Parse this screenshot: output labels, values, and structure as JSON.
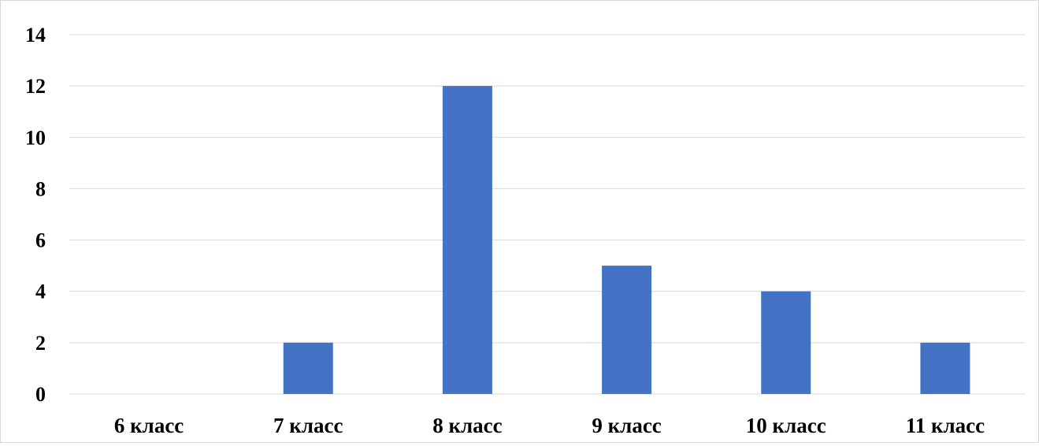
{
  "chart_data": {
    "type": "bar",
    "title": "",
    "xlabel": "",
    "ylabel": "",
    "categories": [
      "6 класс",
      "7 класс",
      "8 класс",
      "9 класс",
      "10 класс",
      "11 класс"
    ],
    "values": [
      0,
      2,
      12,
      5,
      4,
      2
    ],
    "ylim": [
      0,
      14
    ],
    "y_ticks": [
      "0",
      "2",
      "4",
      "6",
      "8",
      "10",
      "12",
      "14"
    ],
    "grid": true,
    "legend": "none",
    "colors": {
      "bar": "#4472C4",
      "gridline": "#d9d9d9",
      "frame": "#d9d9d9",
      "text": "#000000"
    }
  }
}
